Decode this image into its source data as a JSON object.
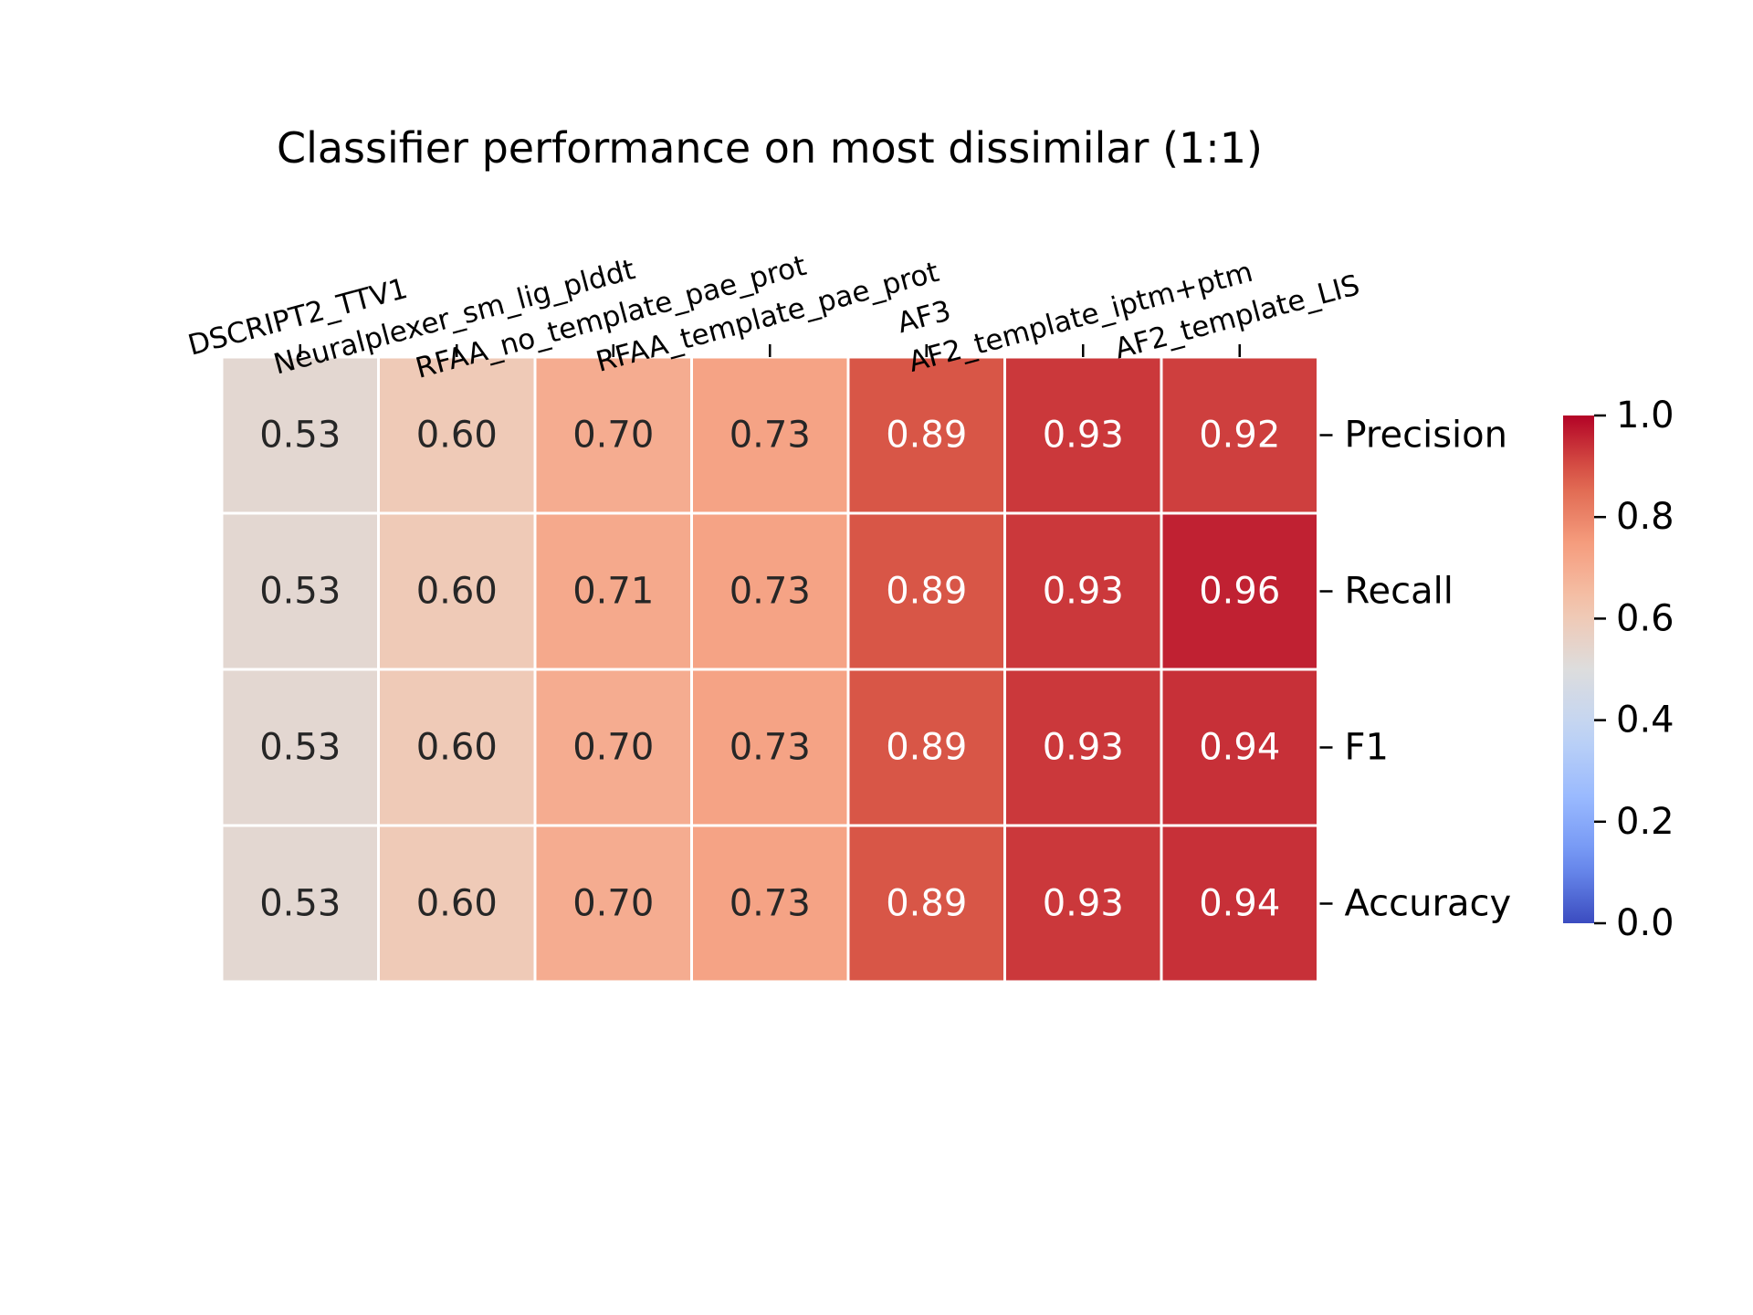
{
  "chart_data": {
    "type": "heatmap",
    "title": "Classifier performance on most dissimilar (1:1)",
    "xlabel": "",
    "ylabel": "",
    "columns": [
      "DSCRIPT2_TTV1",
      "Neuralplexer_sm_lig_plddt",
      "RFAA_no_template_pae_prot",
      "RFAA_template_pae_prot",
      "AF3",
      "AF2_template_iptm+ptm",
      "AF2_template_LIS"
    ],
    "rows": [
      "Precision",
      "Recall",
      "F1",
      "Accuracy"
    ],
    "values": [
      [
        0.53,
        0.6,
        0.7,
        0.73,
        0.89,
        0.93,
        0.92
      ],
      [
        0.53,
        0.6,
        0.71,
        0.73,
        0.89,
        0.93,
        0.96
      ],
      [
        0.53,
        0.6,
        0.7,
        0.73,
        0.89,
        0.93,
        0.94
      ],
      [
        0.53,
        0.6,
        0.7,
        0.73,
        0.89,
        0.93,
        0.94
      ]
    ],
    "annotation_format": "0.00",
    "colormap": "coolwarm",
    "vmin": 0.0,
    "vmax": 1.0,
    "colorbar": {
      "ticks": [
        0.0,
        0.2,
        0.4,
        0.6,
        0.8,
        1.0
      ],
      "tick_labels": [
        "0.0",
        "0.2",
        "0.4",
        "0.6",
        "0.8",
        "1.0"
      ],
      "placement": "right"
    },
    "x_tick_position": "top",
    "y_tick_position": "right",
    "grid": false
  }
}
